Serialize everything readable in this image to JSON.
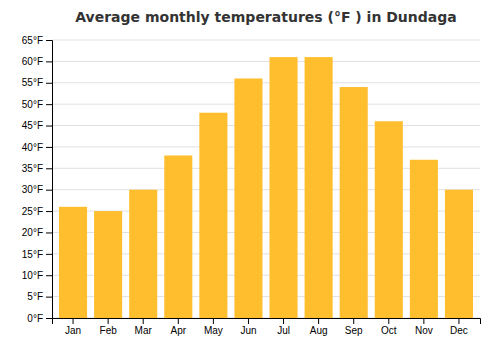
{
  "chart_data": {
    "type": "bar",
    "title": "Average monthly temperatures (°F ) in Dundaga",
    "categories": [
      "Jan",
      "Feb",
      "Mar",
      "Apr",
      "May",
      "Jun",
      "Jul",
      "Aug",
      "Sep",
      "Oct",
      "Nov",
      "Dec"
    ],
    "values": [
      26,
      25,
      30,
      38,
      48,
      56,
      61,
      61,
      54,
      46,
      37,
      30
    ],
    "color": "#FFBE2D",
    "ylim": [
      0,
      65
    ],
    "yticks": [
      {
        "value": 0,
        "label": "0°F"
      },
      {
        "value": 5,
        "label": "5°F"
      },
      {
        "value": 10,
        "label": "10°F"
      },
      {
        "value": 15,
        "label": "15°F"
      },
      {
        "value": 20,
        "label": "20°F"
      },
      {
        "value": 25,
        "label": "25°F"
      },
      {
        "value": 30,
        "label": "30°F"
      },
      {
        "value": 35,
        "label": "35°F"
      },
      {
        "value": 40,
        "label": "40°F"
      },
      {
        "value": 45,
        "label": "45°F"
      },
      {
        "value": 50,
        "label": "50°F"
      },
      {
        "value": 55,
        "label": "55°F"
      },
      {
        "value": 60,
        "label": "60°F"
      },
      {
        "value": 65,
        "label": "65°F"
      }
    ],
    "grid": true
  }
}
